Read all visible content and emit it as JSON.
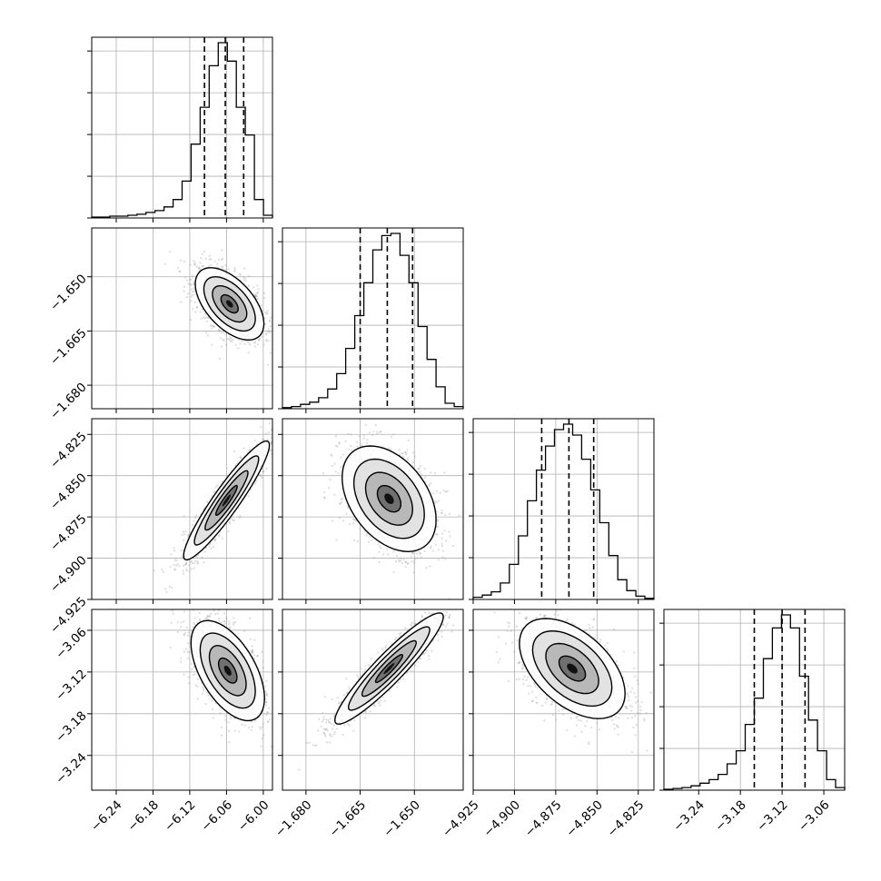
{
  "chart_data": {
    "type": "corner",
    "parameters": [
      {
        "range": [
          -6.28,
          -5.985
        ],
        "ticks": [
          "-6.24",
          "-6.18",
          "-6.12",
          "-6.06",
          "-6.00"
        ],
        "quantiles": [
          -6.096,
          -6.062,
          -6.032
        ]
      },
      {
        "range": [
          -1.6865,
          -1.6365
        ],
        "ticks": [
          "-1.680",
          "-1.665",
          "-1.650"
        ],
        "quantiles": [
          -1.665,
          -1.6575,
          -1.6505
        ]
      },
      {
        "range": [
          -4.925,
          -4.8155
        ],
        "ticks": [
          "-4.925",
          "-4.900",
          "-4.875",
          "-4.850",
          "-4.825"
        ],
        "quantiles": [
          -4.8835,
          -4.867,
          -4.852
        ]
      },
      {
        "range": [
          -3.29,
          -3.03
        ],
        "ticks": [
          "-3.24",
          "-3.18",
          "-3.12",
          "-3.06"
        ],
        "quantiles": [
          -3.16,
          -3.12,
          -3.087
        ]
      }
    ],
    "histograms": [
      [
        1,
        1,
        2,
        2,
        3,
        4,
        6,
        8,
        12,
        20,
        40,
        80,
        120,
        165,
        190,
        170,
        120,
        90,
        20,
        3
      ],
      [
        1,
        2,
        4,
        6,
        10,
        18,
        32,
        55,
        85,
        115,
        145,
        158,
        160,
        140,
        115,
        75,
        45,
        20,
        5,
        2
      ],
      [
        2,
        4,
        7,
        15,
        32,
        58,
        90,
        118,
        140,
        155,
        160,
        150,
        128,
        100,
        70,
        40,
        18,
        8,
        3,
        1
      ],
      [
        1,
        2,
        3,
        5,
        8,
        12,
        18,
        30,
        45,
        75,
        105,
        150,
        185,
        200,
        185,
        130,
        80,
        45,
        12,
        3
      ]
    ],
    "pairs": [
      {
        "row": 1,
        "col": 0,
        "center": [
          -6.055,
          -1.6575
        ],
        "sigma": [
          0.028,
          0.005
        ],
        "rho": -0.55
      },
      {
        "row": 2,
        "col": 0,
        "center": [
          -6.06,
          -4.865
        ],
        "sigma": [
          0.035,
          0.018
        ],
        "rho": 0.93
      },
      {
        "row": 2,
        "col": 1,
        "center": [
          -1.657,
          -4.864
        ],
        "sigma": [
          0.0065,
          0.016
        ],
        "rho": -0.4
      },
      {
        "row": 3,
        "col": 0,
        "center": [
          -6.058,
          -3.118
        ],
        "sigma": [
          0.03,
          0.036
        ],
        "rho": -0.55
      },
      {
        "row": 3,
        "col": 1,
        "center": [
          -1.657,
          -3.115
        ],
        "sigma": [
          0.0075,
          0.04
        ],
        "rho": 0.93
      },
      {
        "row": 3,
        "col": 2,
        "center": [
          -4.865,
          -3.115
        ],
        "sigma": [
          0.016,
          0.036
        ],
        "rho": -0.5
      }
    ],
    "grid": true,
    "colors": {
      "points": "#9a9a9a",
      "lines": "#000000",
      "grid": "#b0b0b0"
    }
  }
}
